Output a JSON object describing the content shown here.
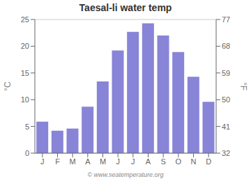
{
  "chart_data": {
    "type": "bar",
    "title": "Taesal-li water temp",
    "categories": [
      "J",
      "F",
      "M",
      "A",
      "M",
      "J",
      "J",
      "A",
      "S",
      "O",
      "N",
      "D"
    ],
    "values": [
      5.9,
      4.2,
      4.6,
      8.7,
      13.4,
      19.2,
      22.7,
      24.3,
      22.0,
      18.9,
      14.3,
      9.6
    ],
    "ylabel": "°C",
    "y2label": "°F",
    "ylim": [
      0,
      25
    ],
    "yticks": [
      0,
      5,
      10,
      15,
      20,
      25
    ],
    "y2lim": [
      32,
      77
    ],
    "y2ticks": [
      32,
      41,
      50,
      59,
      68,
      77
    ],
    "grid": true,
    "annotations": [
      "© www.seatemperature.org"
    ]
  }
}
